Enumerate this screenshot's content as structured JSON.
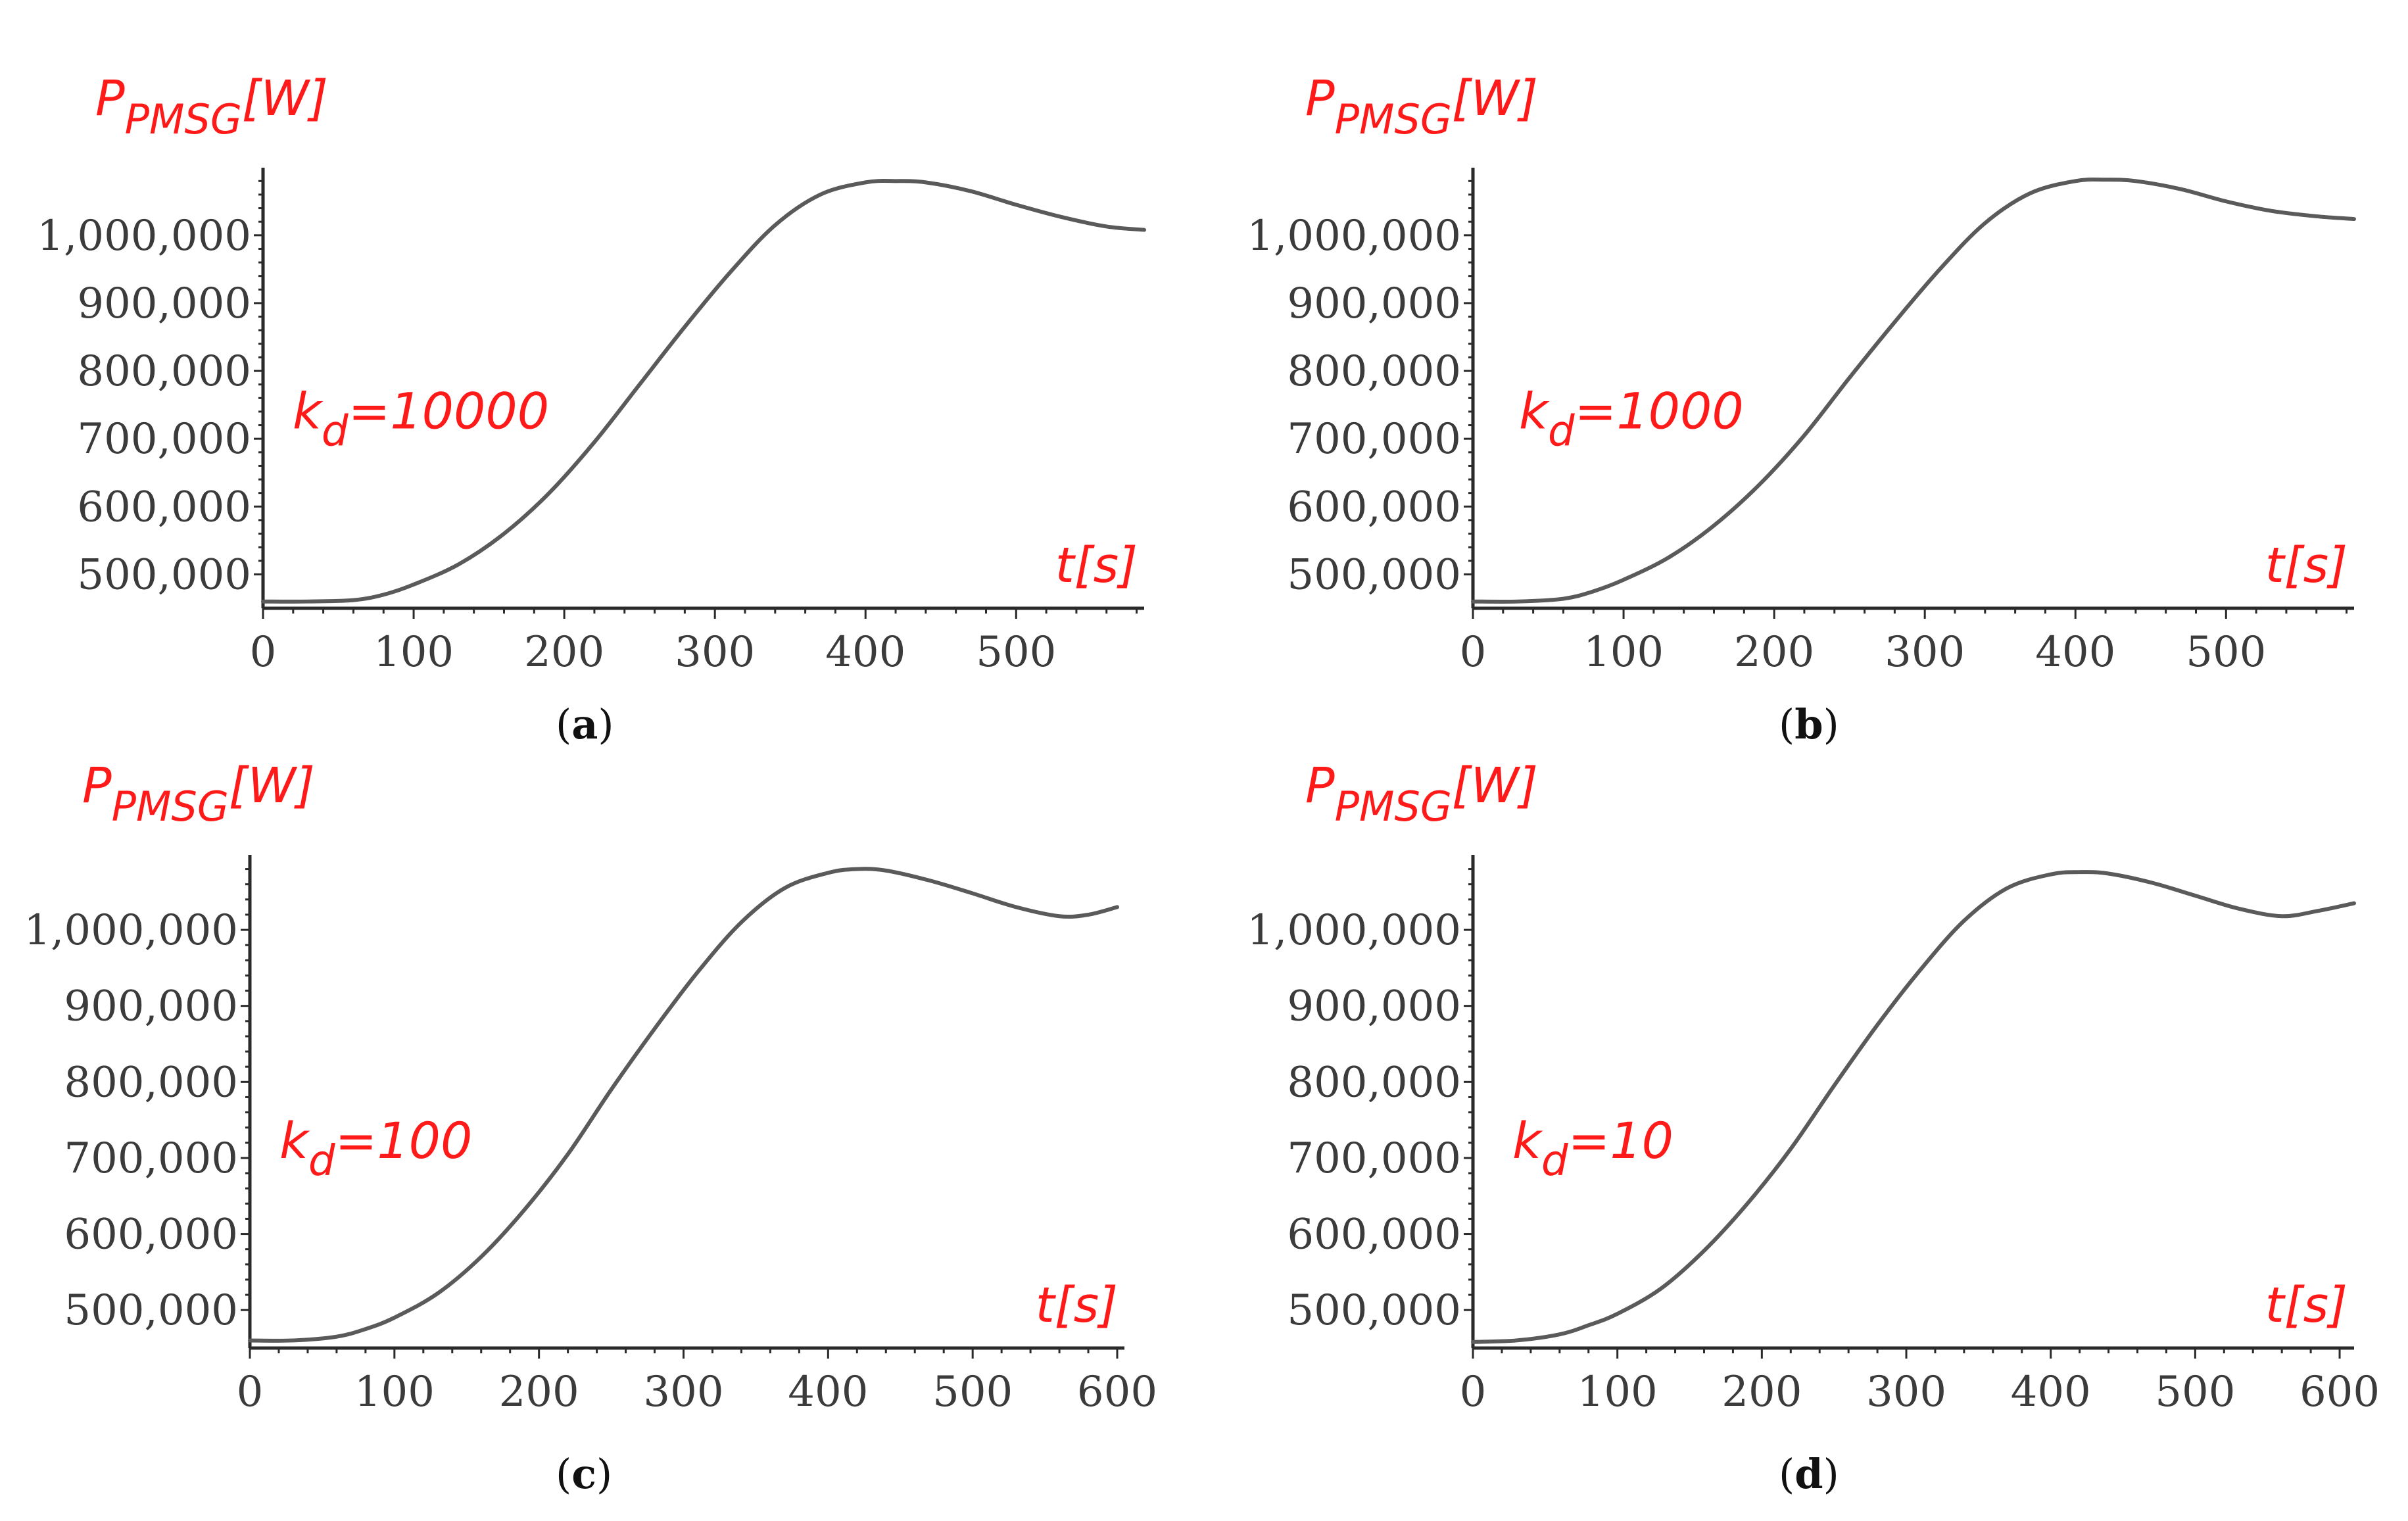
{
  "chart_data": [
    {
      "id": "a",
      "type": "line",
      "caption_letter": "a",
      "annotation": {
        "k": "k",
        "sub": "d",
        "value": "=10000"
      },
      "ylabel": {
        "main": "P",
        "sub": "PMSG",
        "unit": "[W]"
      },
      "xlabel": "t[s]",
      "xlim": [
        0,
        585
      ],
      "ylim": [
        450000,
        1090000
      ],
      "xticks": [
        0,
        100,
        200,
        300,
        400,
        500
      ],
      "yticks": [
        500000,
        600000,
        700000,
        800000,
        900000,
        1000000
      ],
      "ytick_labels": [
        "500,000",
        "600,000",
        "700,000",
        "800,000",
        "900,000",
        "1,000,000"
      ],
      "xtick_labels": [
        "0",
        "100",
        "200",
        "300",
        "400",
        "500"
      ],
      "series": [
        {
          "name": "P_PMSG",
          "x": [
            0,
            30,
            60,
            80,
            100,
            130,
            160,
            190,
            220,
            250,
            280,
            310,
            340,
            370,
            400,
            420,
            440,
            470,
            500,
            530,
            560,
            585
          ],
          "y": [
            460000,
            460000,
            462000,
            470000,
            485000,
            515000,
            560000,
            620000,
            695000,
            780000,
            865000,
            945000,
            1015000,
            1060000,
            1078000,
            1080000,
            1078000,
            1065000,
            1045000,
            1027000,
            1013000,
            1008000
          ]
        }
      ]
    },
    {
      "id": "b",
      "type": "line",
      "caption_letter": "b",
      "annotation": {
        "k": "k",
        "sub": "d",
        "value": "=1000"
      },
      "ylabel": {
        "main": "P",
        "sub": "PMSG",
        "unit": "[W]"
      },
      "xlabel": "t[s]",
      "xlim": [
        0,
        585
      ],
      "ylim": [
        450000,
        1090000
      ],
      "xticks": [
        0,
        100,
        200,
        300,
        400,
        500
      ],
      "yticks": [
        500000,
        600000,
        700000,
        800000,
        900000,
        1000000
      ],
      "ytick_labels": [
        "500,000",
        "600,000",
        "700,000",
        "800,000",
        "900,000",
        "1,000,000"
      ],
      "xtick_labels": [
        "0",
        "100",
        "200",
        "300",
        "400",
        "500"
      ],
      "series": [
        {
          "name": "P_PMSG",
          "x": [
            0,
            30,
            60,
            80,
            100,
            130,
            160,
            190,
            220,
            250,
            280,
            310,
            340,
            370,
            400,
            420,
            440,
            470,
            500,
            530,
            560,
            585
          ],
          "y": [
            460000,
            460000,
            464000,
            475000,
            492000,
            525000,
            572000,
            632000,
            705000,
            790000,
            872000,
            950000,
            1018000,
            1062000,
            1080000,
            1082000,
            1080000,
            1068000,
            1050000,
            1036000,
            1028000,
            1024000
          ]
        }
      ]
    },
    {
      "id": "c",
      "type": "line",
      "caption_letter": "c",
      "annotation": {
        "k": "k",
        "sub": "d",
        "value": "=100"
      },
      "ylabel": {
        "main": "P",
        "sub": "PMSG",
        "unit": "[W]"
      },
      "xlabel": "t[s]",
      "xlim": [
        0,
        605
      ],
      "ylim": [
        450000,
        1090000
      ],
      "xticks": [
        0,
        100,
        200,
        300,
        400,
        500,
        600
      ],
      "yticks": [
        500000,
        600000,
        700000,
        800000,
        900000,
        1000000
      ],
      "ytick_labels": [
        "500,000",
        "600,000",
        "700,000",
        "800,000",
        "900,000",
        "1,000,000"
      ],
      "xtick_labels": [
        "0",
        "100",
        "200",
        "300",
        "400",
        "500",
        "600"
      ],
      "series": [
        {
          "name": "P_PMSG",
          "x": [
            0,
            30,
            60,
            80,
            100,
            130,
            160,
            190,
            220,
            250,
            280,
            310,
            340,
            370,
            400,
            420,
            440,
            470,
            500,
            530,
            560,
            580,
            600
          ],
          "y": [
            460000,
            460000,
            465000,
            475000,
            490000,
            522000,
            570000,
            632000,
            705000,
            790000,
            870000,
            945000,
            1010000,
            1055000,
            1075000,
            1080000,
            1078000,
            1065000,
            1048000,
            1030000,
            1018000,
            1020000,
            1030000
          ]
        }
      ]
    },
    {
      "id": "d",
      "type": "line",
      "caption_letter": "d",
      "annotation": {
        "k": "k",
        "sub": "d",
        "value": "=10"
      },
      "ylabel": {
        "main": "P",
        "sub": "PMSG",
        "unit": "[W]"
      },
      "xlabel": "t[s]",
      "xlim": [
        0,
        610
      ],
      "ylim": [
        450000,
        1090000
      ],
      "xticks": [
        0,
        100,
        200,
        300,
        400,
        500,
        600
      ],
      "yticks": [
        500000,
        600000,
        700000,
        800000,
        900000,
        1000000
      ],
      "ytick_labels": [
        "500,000",
        "600,000",
        "700,000",
        "800,000",
        "900,000",
        "1,000,000"
      ],
      "xtick_labels": [
        "0",
        "100",
        "200",
        "300",
        "400",
        "500",
        "600"
      ],
      "series": [
        {
          "name": "P_PMSG",
          "x": [
            0,
            30,
            60,
            80,
            100,
            130,
            160,
            190,
            220,
            250,
            280,
            310,
            340,
            370,
            400,
            420,
            440,
            470,
            500,
            530,
            560,
            585,
            610
          ],
          "y": [
            458000,
            460000,
            468000,
            480000,
            495000,
            528000,
            578000,
            640000,
            712000,
            795000,
            875000,
            948000,
            1012000,
            1055000,
            1073000,
            1076000,
            1074000,
            1062000,
            1045000,
            1028000,
            1018000,
            1025000,
            1035000
          ]
        }
      ]
    }
  ]
}
